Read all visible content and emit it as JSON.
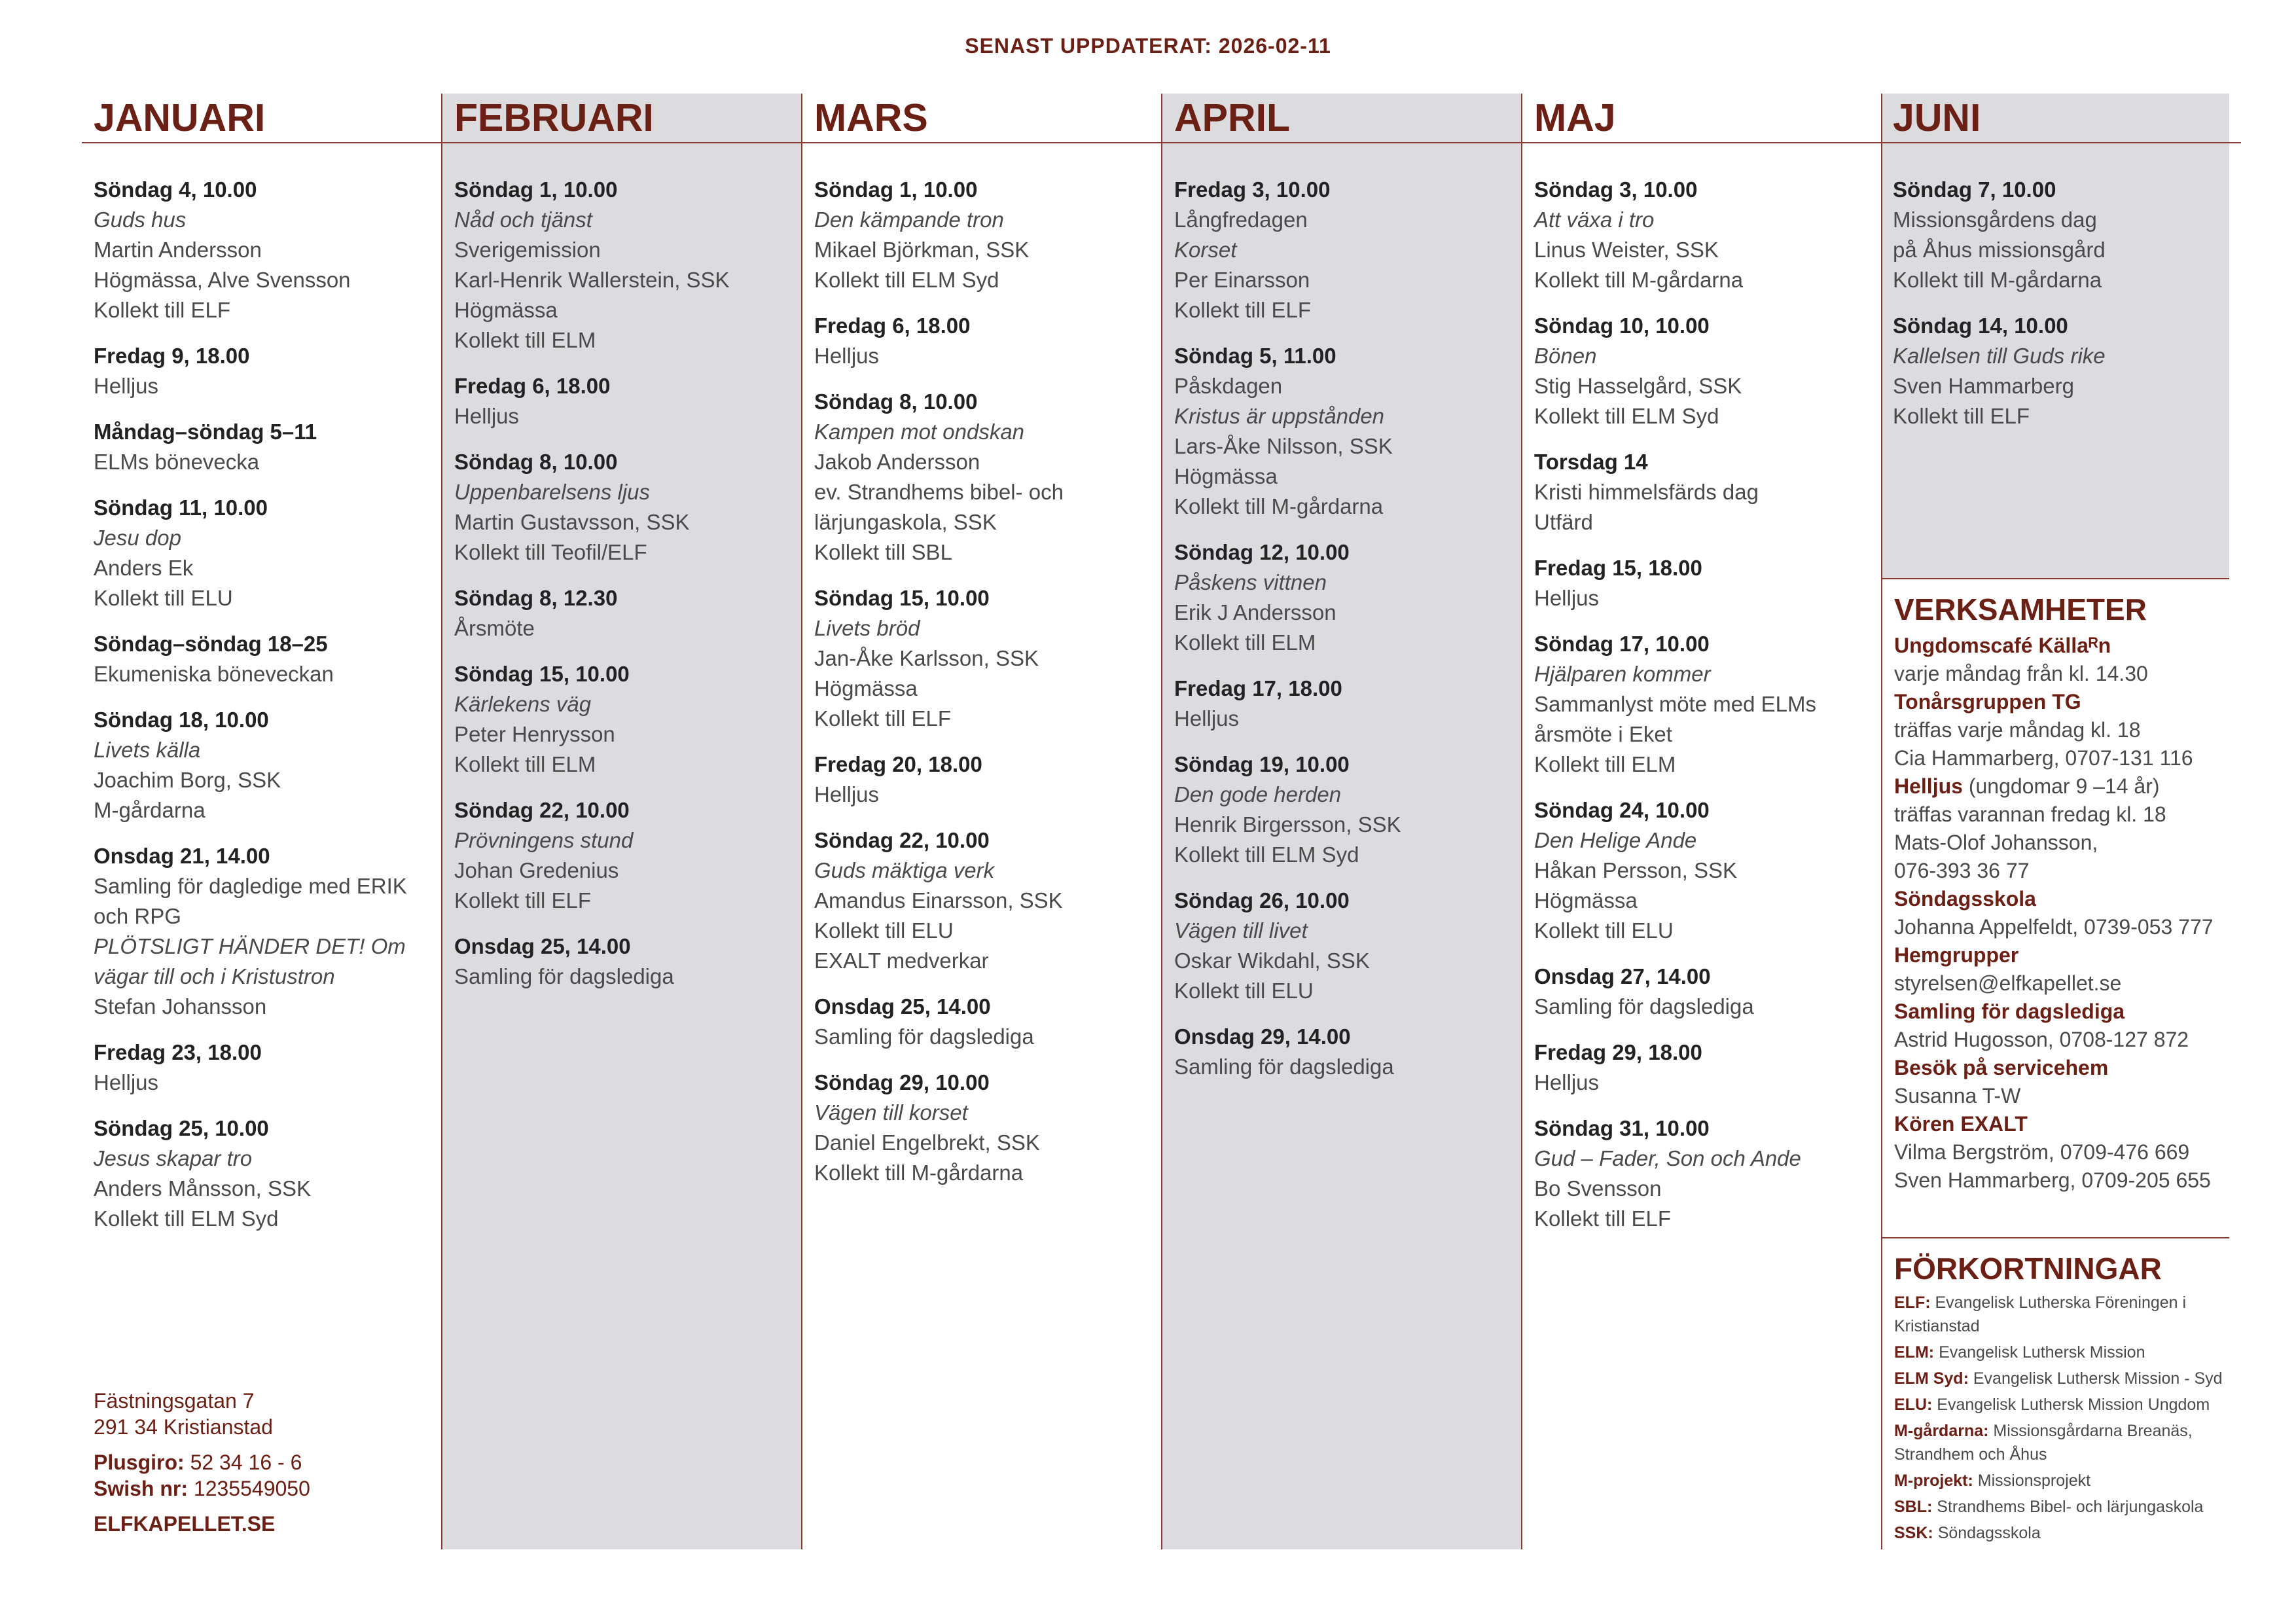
{
  "header": {
    "updated": "SENAST UPPDATERAT: 2026-02-11"
  },
  "columns": [
    {
      "month": "JANUARI",
      "entries": [
        {
          "title": "Söndag 4, 10.00",
          "lines": [
            {
              "italic": "Guds hus"
            },
            "Martin Andersson",
            "Högmässa, Alve Svensson",
            "Kollekt till ELF"
          ]
        },
        {
          "title": "Fredag 9, 18.00",
          "lines": [
            "Helljus"
          ]
        },
        {
          "title": "Måndag–söndag 5–11",
          "lines": [
            "ELMs bönevecka"
          ]
        },
        {
          "title": "Söndag 11, 10.00",
          "lines": [
            {
              "italic": "Jesu dop"
            },
            "Anders Ek",
            "Kollekt till ELU"
          ]
        },
        {
          "title": "Söndag–söndag 18–25",
          "lines": [
            "Ekumeniska böneveckan"
          ]
        },
        {
          "title": "Söndag 18, 10.00",
          "lines": [
            {
              "italic": "Livets källa"
            },
            "Joachim Borg, SSK",
            "M-gårdarna"
          ]
        },
        {
          "title": "Onsdag 21, 14.00",
          "lines": [
            "Samling för dagledige med ERIK och RPG",
            {
              "italic": "PLÖTSLIGT HÄNDER DET! Om vägar till och i Kristustron"
            },
            "Stefan Johansson"
          ]
        },
        {
          "title": "Fredag 23, 18.00",
          "lines": [
            "Helljus"
          ]
        },
        {
          "title": "Söndag 25, 10.00",
          "lines": [
            {
              "italic": "Jesus skapar tro"
            },
            "Anders Månsson, SSK",
            "Kollekt till ELM Syd"
          ]
        }
      ]
    },
    {
      "month": "FEBRUARI",
      "entries": [
        {
          "title": "Söndag 1, 10.00",
          "lines": [
            {
              "italic": "Nåd och tjänst"
            },
            "Sverigemission",
            "Karl-Henrik Wallerstein, SSK",
            "Högmässa",
            "Kollekt till ELM"
          ]
        },
        {
          "title": "Fredag 6, 18.00",
          "lines": [
            "Helljus"
          ]
        },
        {
          "title": "Söndag 8, 10.00",
          "lines": [
            {
              "italic": "Uppenbarelsens ljus"
            },
            "Martin Gustavsson, SSK",
            "Kollekt till Teofil/ELF"
          ]
        },
        {
          "title": "Söndag 8, 12.30",
          "lines": [
            "Årsmöte"
          ]
        },
        {
          "title": "Söndag 15, 10.00",
          "lines": [
            {
              "italic": "Kärlekens väg"
            },
            "Peter Henrysson",
            "Kollekt till ELM"
          ]
        },
        {
          "title": "Söndag 22, 10.00",
          "lines": [
            {
              "italic": "Prövningens stund"
            },
            "Johan Gredenius",
            "Kollekt till ELF"
          ]
        },
        {
          "title": "Onsdag 25, 14.00",
          "lines": [
            "Samling för dagslediga"
          ]
        }
      ]
    },
    {
      "month": "MARS",
      "entries": [
        {
          "title": "Söndag 1, 10.00",
          "lines": [
            {
              "italic": "Den kämpande tron"
            },
            "Mikael Björkman, SSK",
            "Kollekt till ELM Syd"
          ]
        },
        {
          "title": "Fredag 6, 18.00",
          "lines": [
            "Helljus"
          ]
        },
        {
          "title": "Söndag 8, 10.00",
          "lines": [
            {
              "italic": "Kampen mot ondskan"
            },
            "Jakob Andersson",
            "ev. Strandhems bibel- och lärjungaskola, SSK",
            "Kollekt till SBL"
          ]
        },
        {
          "title": "Söndag 15, 10.00",
          "lines": [
            {
              "italic": "Livets bröd"
            },
            "Jan-Åke Karlsson, SSK",
            "Högmässa",
            "Kollekt till ELF"
          ]
        },
        {
          "title": "Fredag 20, 18.00",
          "lines": [
            "Helljus"
          ]
        },
        {
          "title": "Söndag 22, 10.00",
          "lines": [
            {
              "italic": "Guds mäktiga verk"
            },
            "Amandus Einarsson, SSK",
            "Kollekt till ELU",
            "EXALT medverkar"
          ]
        },
        {
          "title": "Onsdag 25, 14.00",
          "lines": [
            "Samling för dagslediga"
          ]
        },
        {
          "title": "Söndag 29, 10.00",
          "lines": [
            {
              "italic": "Vägen till korset"
            },
            "Daniel Engelbrekt, SSK",
            "Kollekt till M-gårdarna"
          ]
        }
      ]
    },
    {
      "month": "APRIL",
      "entries": [
        {
          "title": "Fredag 3, 10.00",
          "lines": [
            "Långfredagen",
            {
              "italic": "Korset"
            },
            "Per Einarsson",
            "Kollekt till ELF"
          ]
        },
        {
          "title": "Söndag 5, 11.00",
          "lines": [
            "Påskdagen",
            {
              "italic": "Kristus är uppstånden"
            },
            "Lars-Åke Nilsson, SSK",
            "Högmässa",
            "Kollekt till M-gårdarna"
          ]
        },
        {
          "title": "Söndag 12, 10.00",
          "lines": [
            {
              "italic": "Påskens vittnen"
            },
            "Erik J Andersson",
            "Kollekt till ELM"
          ]
        },
        {
          "title": "Fredag 17, 18.00",
          "lines": [
            "Helljus"
          ]
        },
        {
          "title": "Söndag 19, 10.00",
          "lines": [
            {
              "italic": "Den gode herden"
            },
            "Henrik Birgersson, SSK",
            "Kollekt till ELM Syd"
          ]
        },
        {
          "title": "Söndag 26, 10.00",
          "lines": [
            {
              "italic": "Vägen till livet"
            },
            "Oskar Wikdahl, SSK",
            "Kollekt till ELU"
          ]
        },
        {
          "title": "Onsdag 29, 14.00",
          "lines": [
            "Samling för dagslediga"
          ]
        }
      ]
    },
    {
      "month": "MAJ",
      "entries": [
        {
          "title": "Söndag 3, 10.00",
          "lines": [
            {
              "italic": "Att växa i tro"
            },
            "Linus Weister, SSK",
            "Kollekt till M-gårdarna"
          ]
        },
        {
          "title": "Söndag 10, 10.00",
          "lines": [
            {
              "italic": "Bönen"
            },
            "Stig Hasselgård, SSK",
            "Kollekt till ELM Syd"
          ]
        },
        {
          "title": "Torsdag 14",
          "lines": [
            "Kristi himmelsfärds dag",
            "Utfärd"
          ]
        },
        {
          "title": "Fredag 15, 18.00",
          "lines": [
            "Helljus"
          ]
        },
        {
          "title": "Söndag 17, 10.00",
          "lines": [
            {
              "italic": "Hjälparen kommer"
            },
            "Sammanlyst möte med ELMs årsmöte i Eket",
            "Kollekt till ELM"
          ]
        },
        {
          "title": "Söndag 24, 10.00",
          "lines": [
            {
              "italic": "Den Helige Ande"
            },
            "Håkan Persson, SSK",
            "Högmässa",
            "Kollekt till ELU"
          ]
        },
        {
          "title": "Onsdag 27, 14.00",
          "lines": [
            "Samling för dagslediga"
          ]
        },
        {
          "title": "Fredag 29, 18.00",
          "lines": [
            "Helljus"
          ]
        },
        {
          "title": "Söndag 31, 10.00",
          "lines": [
            {
              "italic": "Gud – Fader, Son och Ande"
            },
            "Bo Svensson",
            "Kollekt till ELF"
          ]
        }
      ]
    },
    {
      "month": "JUNI",
      "entries": [
        {
          "title": "Söndag 7, 10.00",
          "lines": [
            "Missionsgårdens dag",
            "på Åhus missionsgård",
            "Kollekt till M-gårdarna"
          ]
        },
        {
          "title": "Söndag 14, 10.00",
          "lines": [
            {
              "italic": "Kallelsen till Guds rike"
            },
            "Sven Hammarberg",
            "Kollekt till ELF"
          ]
        }
      ]
    }
  ],
  "activities": {
    "title": "VERKSAMHETER",
    "items": [
      {
        "name": "Ungdomscafé Källaᴿn",
        "lines": [
          "varje måndag från kl. 14.30"
        ]
      },
      {
        "name": "Tonårsgruppen TG",
        "lines": [
          "träffas varje måndag kl. 18",
          "Cia Hammarberg, 0707-131 116"
        ]
      },
      {
        "name": "Helljus",
        "note": "(ungdomar 9 –14 år)",
        "lines": [
          "träffas varannan fredag kl. 18",
          "Mats-Olof Johansson,",
          "076-393 36 77"
        ]
      },
      {
        "name": "Söndagsskola",
        "lines": [
          "Johanna Appelfeldt, 0739-053 777"
        ]
      },
      {
        "name": "Hemgrupper",
        "lines": [
          "styrelsen@elfkapellet.se"
        ]
      },
      {
        "name": "Samling för dagslediga",
        "lines": [
          "Astrid Hugosson, 0708-127 872"
        ]
      },
      {
        "name": "Besök på servicehem",
        "lines": [
          "Susanna T-W"
        ]
      },
      {
        "name": "Kören EXALT",
        "lines": [
          "Vilma Bergström, 0709-476 669",
          "Sven Hammarberg, 0709-205 655"
        ]
      }
    ]
  },
  "abbreviations": {
    "title": "FÖRKORTNINGAR",
    "items": [
      {
        "abbr": "ELF:",
        "text": "Evangelisk Lutherska Föreningen i Kristianstad"
      },
      {
        "abbr": "ELM:",
        "text": "Evangelisk Luthersk Mission"
      },
      {
        "abbr": "ELM Syd:",
        "text": "Evangelisk Luthersk Mission - Syd"
      },
      {
        "abbr": "ELU:",
        "text": "Evangelisk Luthersk Mission Ungdom"
      },
      {
        "abbr": "M-gårdarna:",
        "text": "Missionsgårdarna Breanäs, Strandhem och Åhus"
      },
      {
        "abbr": "M-projekt:",
        "text": "Missionsprojekt"
      },
      {
        "abbr": "SBL:",
        "text": "Strandhems Bibel- och lärjungaskola"
      },
      {
        "abbr": "SSK:",
        "text": "Söndagsskola"
      }
    ]
  },
  "footer": {
    "address": [
      "Fästningsgatan 7",
      "291 34 Kristianstad"
    ],
    "payments": [
      {
        "label": "Plusgiro:",
        "value": "52 34 16 - 6"
      },
      {
        "label": "Swish nr:",
        "value": "1235549050"
      }
    ],
    "website": "ELFKAPELLET.SE"
  }
}
